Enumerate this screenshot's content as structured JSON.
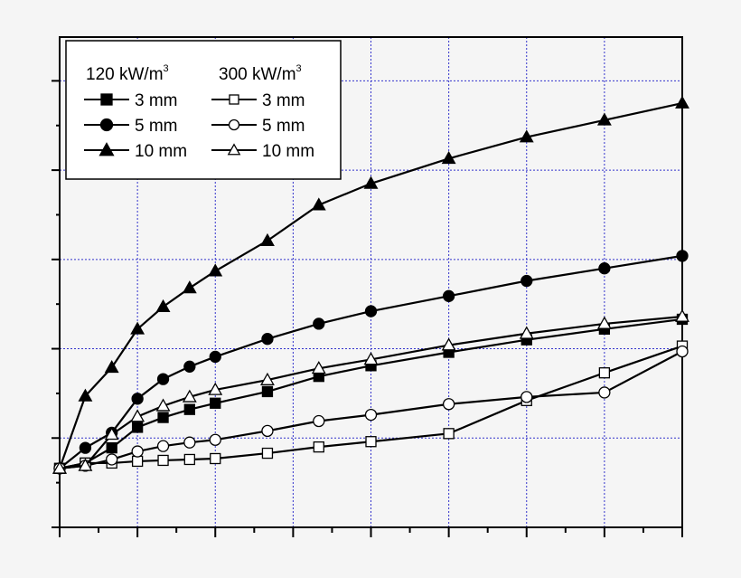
{
  "chart_data": {
    "type": "line",
    "title": "",
    "xlabel": "",
    "ylabel": "",
    "xlim": [
      0,
      8
    ],
    "ylim": [
      0,
      5.49
    ],
    "grid": true,
    "grid_color": "#3333cc",
    "legend_placement": "top-left",
    "legend_groups": [
      {
        "label": "120 kW/m",
        "sup": "3"
      },
      {
        "label": "300 kW/m",
        "sup": "3"
      }
    ],
    "x_ticks_labeled": false,
    "y_ticks_labeled": false,
    "series": [
      {
        "name": "3 mm",
        "group": 0,
        "marker": "square",
        "filled": true,
        "x": [
          0,
          0.33,
          0.67,
          1,
          1.33,
          1.67,
          2,
          2.67,
          3.33,
          4,
          5,
          6,
          7,
          8
        ],
        "y": [
          0.66,
          0.72,
          0.89,
          1.12,
          1.23,
          1.32,
          1.39,
          1.52,
          1.69,
          1.81,
          1.96,
          2.1,
          2.22,
          2.33
        ]
      },
      {
        "name": "5 mm",
        "group": 0,
        "marker": "circle",
        "filled": true,
        "x": [
          0,
          0.33,
          0.67,
          1,
          1.33,
          1.67,
          2,
          2.67,
          3.33,
          4,
          5,
          6,
          7,
          8
        ],
        "y": [
          0.66,
          0.89,
          1.06,
          1.44,
          1.66,
          1.8,
          1.91,
          2.11,
          2.28,
          2.42,
          2.59,
          2.76,
          2.9,
          3.04
        ]
      },
      {
        "name": "10 mm",
        "group": 0,
        "marker": "triangle",
        "filled": true,
        "x": [
          0,
          0.33,
          0.67,
          1,
          1.33,
          1.67,
          2,
          2.67,
          3.33,
          4,
          5,
          6,
          7,
          8
        ],
        "y": [
          0.66,
          1.47,
          1.79,
          2.22,
          2.47,
          2.68,
          2.87,
          3.21,
          3.61,
          3.85,
          4.13,
          4.37,
          4.56,
          4.75
        ]
      },
      {
        "name": "3 mm",
        "group": 1,
        "marker": "square",
        "filled": false,
        "x": [
          0,
          0.33,
          0.67,
          1,
          1.33,
          1.67,
          2,
          2.67,
          3.33,
          4,
          5,
          6,
          7,
          8
        ],
        "y": [
          0.66,
          0.72,
          0.72,
          0.74,
          0.75,
          0.76,
          0.77,
          0.83,
          0.9,
          0.96,
          1.05,
          1.42,
          1.73,
          2.03
        ]
      },
      {
        "name": "5 mm",
        "group": 1,
        "marker": "circle",
        "filled": false,
        "x": [
          0,
          0.33,
          0.67,
          1,
          1.33,
          1.67,
          2,
          2.67,
          3.33,
          4,
          5,
          6,
          7,
          8
        ],
        "y": [
          0.66,
          0.69,
          0.76,
          0.85,
          0.91,
          0.95,
          0.98,
          1.08,
          1.19,
          1.26,
          1.38,
          1.46,
          1.51,
          1.97
        ]
      },
      {
        "name": "10 mm",
        "group": 1,
        "marker": "triangle",
        "filled": false,
        "x": [
          0,
          0.33,
          0.67,
          1,
          1.33,
          1.67,
          2,
          2.67,
          3.33,
          4,
          5,
          6,
          7,
          8
        ],
        "y": [
          0.66,
          0.69,
          1.04,
          1.24,
          1.36,
          1.46,
          1.54,
          1.65,
          1.78,
          1.88,
          2.04,
          2.17,
          2.28,
          2.36
        ]
      }
    ]
  }
}
